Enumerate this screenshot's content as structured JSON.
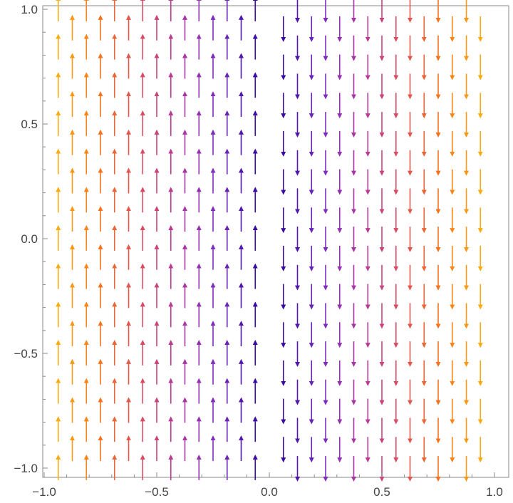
{
  "chart_data": {
    "type": "vector_field",
    "title": "",
    "xlabel": "",
    "ylabel": "",
    "xlim": [
      -1.0,
      1.0
    ],
    "ylim": [
      -1.0,
      1.0
    ],
    "x_ticks": [
      {
        "value": -1.0,
        "label": "-1.0"
      },
      {
        "value": -0.5,
        "label": "-0.5"
      },
      {
        "value": 0.0,
        "label": "0.0"
      },
      {
        "value": 0.5,
        "label": "0.5"
      },
      {
        "value": 1.0,
        "label": "1.0"
      }
    ],
    "y_ticks": [
      {
        "value": -1.0,
        "label": "-1.0"
      },
      {
        "value": -0.5,
        "label": "-0.5"
      },
      {
        "value": 0.0,
        "label": "0.0"
      },
      {
        "value": 0.5,
        "label": "0.5"
      },
      {
        "value": 1.0,
        "label": "1.0"
      }
    ],
    "grid": false,
    "field": "vertical vectors, pointing up for x < 0 and down for x > 0; color by distance from x = 0",
    "columns_x": [
      -0.9375,
      -0.875,
      -0.8125,
      -0.75,
      -0.6875,
      -0.625,
      -0.5625,
      -0.5,
      -0.4375,
      -0.375,
      -0.3125,
      -0.25,
      -0.1875,
      -0.125,
      -0.0625,
      0.0625,
      0.125,
      0.1875,
      0.25,
      0.3125,
      0.375,
      0.4375,
      0.5,
      0.5625,
      0.625,
      0.6875,
      0.75,
      0.8125,
      0.875,
      0.9375
    ],
    "row_y_primary": [
      -1.0,
      -0.8333,
      -0.6667,
      -0.5,
      -0.3333,
      -0.1667,
      0.0,
      0.1667,
      0.3333,
      0.5,
      0.6667,
      0.8333,
      1.0
    ],
    "row_y_offset": [
      -0.9167,
      -0.75,
      -0.5833,
      -0.4167,
      -0.25,
      -0.0833,
      0.0833,
      0.25,
      0.4167,
      0.5833,
      0.75,
      0.9167
    ],
    "vector_length": 0.105,
    "color_scale": [
      "#3a0ca3",
      "#7b2cbf",
      "#b5379c",
      "#de4e5a",
      "#f7761a",
      "#fbab12"
    ]
  }
}
